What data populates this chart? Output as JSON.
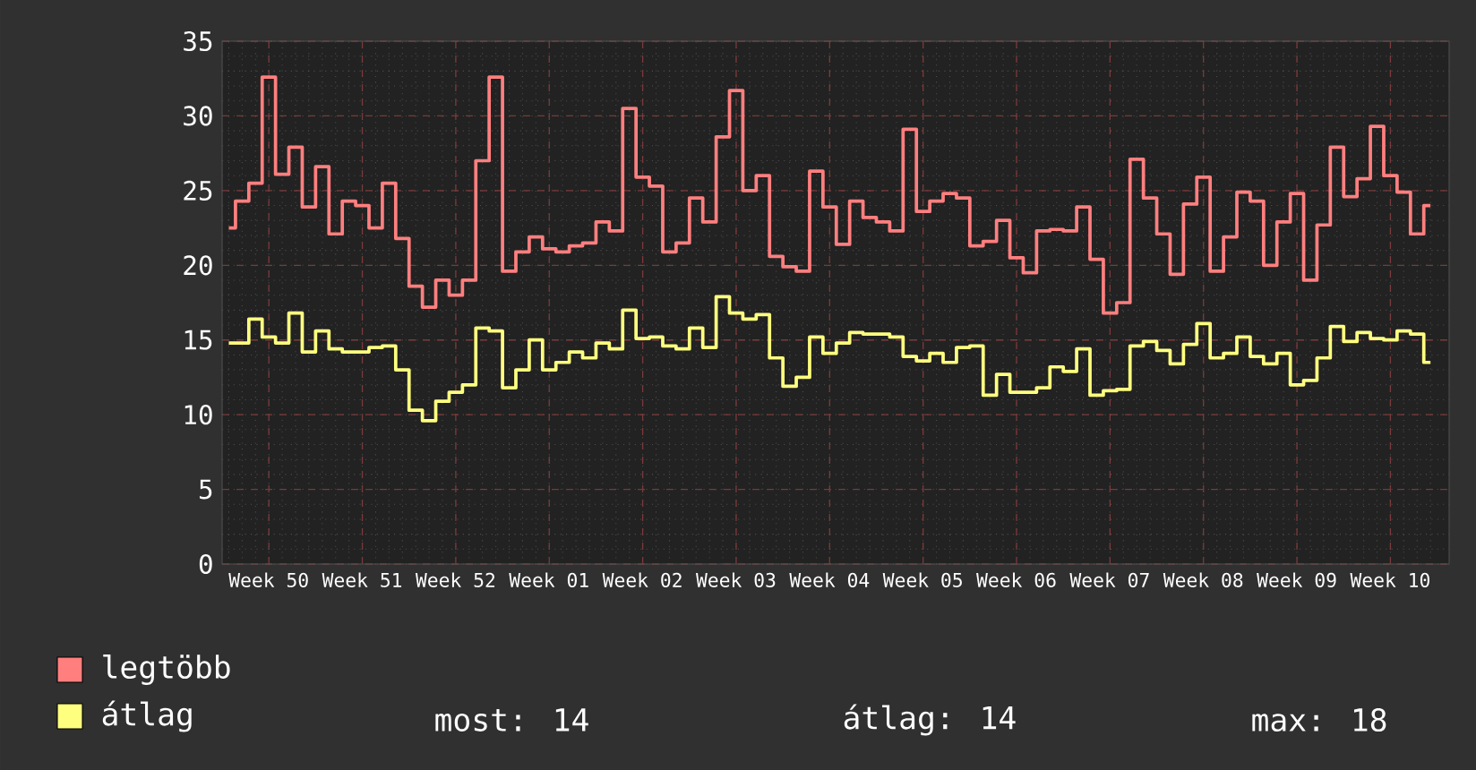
{
  "chart_data": {
    "type": "step",
    "categories": [
      null,
      null,
      null,
      "Week 50",
      null,
      null,
      null,
      null,
      null,
      null,
      "Week 51",
      null,
      null,
      null,
      null,
      null,
      null,
      "Week 52",
      null,
      null,
      null,
      null,
      null,
      null,
      "Week 01",
      null,
      null,
      null,
      null,
      null,
      null,
      "Week 02",
      null,
      null,
      null,
      null,
      null,
      null,
      "Week 03",
      null,
      null,
      null,
      null,
      null,
      null,
      "Week 04",
      null,
      null,
      null,
      null,
      null,
      null,
      "Week 05",
      null,
      null,
      null,
      null,
      null,
      null,
      "Week 06",
      null,
      null,
      null,
      null,
      null,
      null,
      "Week 07",
      null,
      null,
      null,
      null,
      null,
      null,
      "Week 08",
      null,
      null,
      null,
      null,
      null,
      null,
      "Week 09",
      null,
      null,
      null,
      null,
      null,
      null,
      "Week 10",
      null,
      null,
      null
    ],
    "series": [
      {
        "name": "legtöbb",
        "color": "#ff7f7f",
        "values": [
          22.5,
          24.3,
          25.5,
          32.6,
          26.1,
          27.9,
          23.9,
          26.6,
          22.1,
          24.3,
          24.0,
          22.5,
          25.5,
          21.8,
          18.6,
          17.2,
          19.0,
          18.0,
          19.0,
          27.0,
          32.6,
          19.6,
          20.9,
          21.9,
          21.1,
          20.9,
          21.3,
          21.5,
          22.9,
          22.3,
          30.5,
          25.9,
          25.3,
          20.9,
          21.5,
          24.5,
          22.9,
          28.6,
          31.7,
          25.0,
          26.0,
          20.6,
          19.9,
          19.6,
          26.3,
          23.9,
          21.4,
          24.3,
          23.2,
          22.9,
          22.3,
          29.1,
          23.6,
          24.3,
          24.8,
          24.5,
          21.3,
          21.6,
          23.0,
          20.5,
          19.5,
          22.3,
          22.4,
          22.3,
          23.9,
          20.4,
          16.8,
          17.5,
          27.1,
          24.5,
          22.1,
          19.4,
          24.1,
          25.9,
          19.6,
          21.9,
          24.9,
          24.3,
          20.0,
          22.9,
          24.8,
          19.0,
          22.7,
          27.9,
          24.6,
          25.8,
          29.3,
          26.0,
          24.9,
          22.1,
          24.0
        ]
      },
      {
        "name": "átlag",
        "color": "#ffff7f",
        "values": [
          14.8,
          14.8,
          16.4,
          15.2,
          14.8,
          16.8,
          14.2,
          15.6,
          14.4,
          14.2,
          14.2,
          14.5,
          14.6,
          13.0,
          10.3,
          9.6,
          10.9,
          11.5,
          12.0,
          15.8,
          15.6,
          11.8,
          13.0,
          15.0,
          13.0,
          13.5,
          14.2,
          13.8,
          14.8,
          14.4,
          17.0,
          15.1,
          15.2,
          14.6,
          14.4,
          15.8,
          14.5,
          17.9,
          16.8,
          16.4,
          16.7,
          13.8,
          11.9,
          12.5,
          15.2,
          14.1,
          14.8,
          15.5,
          15.4,
          15.4,
          15.2,
          13.9,
          13.6,
          14.1,
          13.5,
          14.5,
          14.6,
          11.3,
          12.7,
          11.5,
          11.5,
          11.8,
          13.2,
          12.9,
          14.4,
          11.3,
          11.6,
          11.7,
          14.6,
          14.9,
          14.3,
          13.4,
          14.7,
          16.1,
          13.8,
          14.1,
          15.2,
          13.9,
          13.4,
          14.1,
          12.0,
          12.3,
          13.8,
          15.9,
          14.9,
          15.5,
          15.1,
          15.0,
          15.6,
          15.4,
          13.5
        ]
      }
    ],
    "ylim": [
      0,
      35
    ],
    "yticks": [
      0,
      5,
      10,
      15,
      20,
      25,
      30,
      35
    ],
    "grid": true,
    "legend": "bottom",
    "annotations": [
      "most: 14",
      "átlag: 14",
      "max: 18"
    ]
  }
}
